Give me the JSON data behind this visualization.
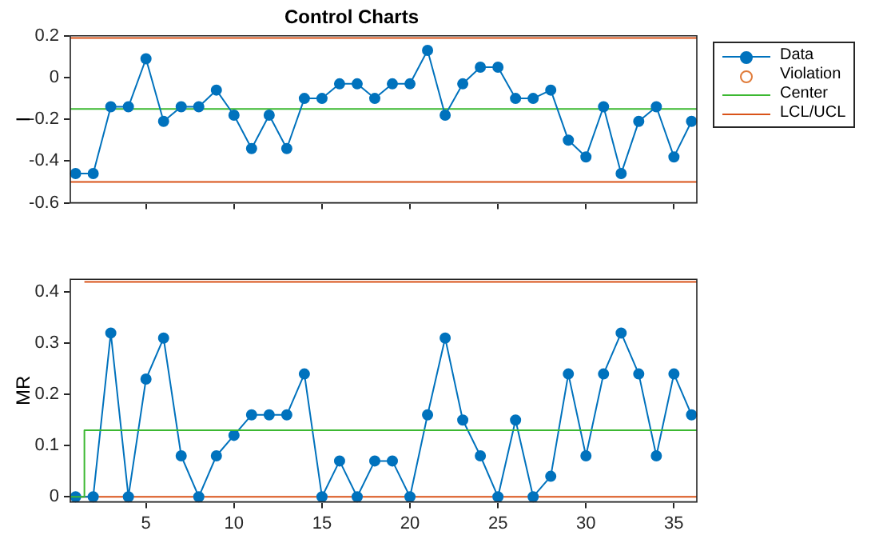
{
  "chart_data": [
    {
      "type": "line",
      "title": "Control Charts",
      "ylabel": "I",
      "x": [
        1,
        2,
        3,
        4,
        5,
        6,
        7,
        8,
        9,
        10,
        11,
        12,
        13,
        14,
        15,
        16,
        17,
        18,
        19,
        20,
        21,
        22,
        23,
        24,
        25,
        26,
        27,
        28,
        29,
        30,
        31,
        32,
        33,
        34,
        35,
        36
      ],
      "xlim": [
        0.7,
        36.3
      ],
      "xticks": [
        5,
        10,
        15,
        20,
        25,
        30,
        35
      ],
      "ylim": [
        -0.6,
        0.2
      ],
      "yticks": [
        -0.6,
        -0.4,
        -0.2,
        0,
        0.2
      ],
      "tick_labels": "y",
      "grid": false,
      "legend": "right",
      "series": [
        {
          "name": "Data",
          "color": "#0072bd",
          "marker": "circle",
          "line_style": "solid",
          "values": [
            -0.46,
            -0.46,
            -0.14,
            -0.14,
            0.09,
            -0.21,
            -0.14,
            -0.14,
            -0.06,
            -0.18,
            -0.34,
            -0.18,
            -0.34,
            -0.1,
            -0.1,
            -0.03,
            -0.03,
            -0.1,
            -0.03,
            -0.03,
            0.13,
            -0.18,
            -0.03,
            0.05,
            0.05,
            -0.1,
            -0.1,
            -0.06,
            -0.3,
            -0.38,
            -0.14,
            -0.46,
            -0.21,
            -0.14,
            -0.38,
            -0.21
          ]
        },
        {
          "name": "Violation",
          "color": "#e07b39",
          "marker": "circle",
          "line_style": "none",
          "values": [
            null,
            null,
            null,
            null,
            null,
            null,
            null,
            null,
            null,
            null,
            null,
            null,
            null,
            null,
            null,
            null,
            null,
            null,
            null,
            null,
            null,
            null,
            null,
            null,
            null,
            null,
            null,
            null,
            null,
            null,
            null,
            null,
            null,
            null,
            null,
            null
          ]
        },
        {
          "name": "Center",
          "color": "#3cb832",
          "marker": "none",
          "line_style": "solid",
          "x": [
            0.7,
            36.3
          ],
          "values": [
            -0.15,
            -0.15
          ]
        },
        {
          "name": "LCL/UCL",
          "color": "#d95319",
          "marker": "none",
          "line_style": "solid",
          "x": [
            0.7,
            36.3
          ],
          "values": [
            0.19,
            0.19
          ]
        },
        {
          "color": "#d95319",
          "marker": "none",
          "line_style": "solid",
          "x": [
            0.7,
            36.3
          ],
          "values": [
            -0.5,
            -0.5
          ]
        }
      ]
    },
    {
      "type": "line",
      "ylabel": "MR",
      "x": [
        1,
        2,
        3,
        4,
        5,
        6,
        7,
        8,
        9,
        10,
        11,
        12,
        13,
        14,
        15,
        16,
        17,
        18,
        19,
        20,
        21,
        22,
        23,
        24,
        25,
        26,
        27,
        28,
        29,
        30,
        31,
        32,
        33,
        34,
        35,
        36
      ],
      "xlim": [
        0.7,
        36.3
      ],
      "xticks": [
        5,
        10,
        15,
        20,
        25,
        30,
        35
      ],
      "ylim": [
        -0.01,
        0.425
      ],
      "yticks": [
        0,
        0.1,
        0.2,
        0.3,
        0.4
      ],
      "grid": false,
      "series": [
        {
          "color": "#3cb832",
          "marker": "none",
          "line_style": "solid",
          "x": [
            0.7,
            1.45,
            1.5,
            36.3
          ],
          "values": [
            0,
            0,
            0.13,
            0.13
          ]
        },
        {
          "color": "#0072bd",
          "marker": "circle",
          "line_style": "solid",
          "values": [
            0,
            0,
            0.32,
            0,
            0.23,
            0.31,
            0.08,
            0,
            0.08,
            0.12,
            0.16,
            0.16,
            0.16,
            0.24,
            0,
            0.07,
            0,
            0.07,
            0.07,
            0,
            0.16,
            0.31,
            0.15,
            0.08,
            0,
            0.15,
            0,
            0.04,
            0.24,
            0.08,
            0.24,
            0.32,
            0.24,
            0.08,
            0.24,
            0.16
          ]
        },
        {
          "color": "#d95319",
          "marker": "none",
          "line_style": "solid",
          "x": [
            1.5,
            36.3
          ],
          "values": [
            0.42,
            0.42
          ]
        },
        {
          "color": "#d95319",
          "marker": "none",
          "line_style": "solid",
          "x": [
            0.7,
            36.3
          ],
          "values": [
            0,
            0
          ]
        }
      ]
    }
  ]
}
